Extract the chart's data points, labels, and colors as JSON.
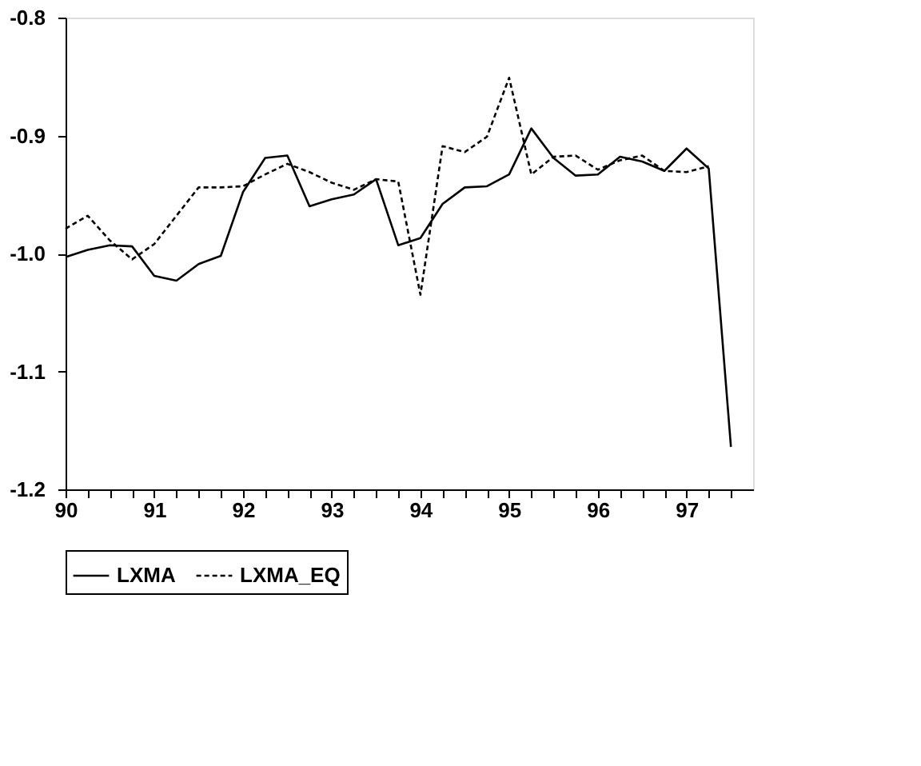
{
  "chart_data": {
    "type": "line",
    "x": [
      90,
      90.25,
      90.5,
      90.75,
      91,
      91.25,
      91.5,
      91.75,
      92,
      92.25,
      92.5,
      92.75,
      93,
      93.25,
      93.5,
      93.75,
      94,
      94.25,
      94.5,
      94.75,
      95,
      95.25,
      95.5,
      95.75,
      96,
      96.25,
      96.5,
      96.75,
      97,
      97.25,
      97.5
    ],
    "series": [
      {
        "name": "LXMA",
        "color": "#000000",
        "line_style": "solid",
        "values": [
          -1.003,
          -0.997,
          -0.993,
          -0.994,
          -1.019,
          -1.023,
          -1.009,
          -1.002,
          -0.948,
          -0.919,
          -0.917,
          -0.96,
          -0.954,
          -0.95,
          -0.937,
          -0.993,
          -0.987,
          -0.958,
          -0.944,
          -0.943,
          -0.933,
          -0.894,
          -0.919,
          -0.934,
          -0.933,
          -0.918,
          -0.922,
          -0.93,
          -0.911,
          -0.928,
          -1.164
        ]
      },
      {
        "name": "LXMA_EQ",
        "color": "#000000",
        "line_style": "dashed",
        "values": [
          -0.979,
          -0.968,
          -0.989,
          -1.005,
          -0.992,
          -0.968,
          -0.944,
          -0.944,
          -0.943,
          -0.933,
          -0.924,
          -0.931,
          -0.94,
          -0.946,
          -0.937,
          -0.939,
          -1.035,
          -0.909,
          -0.914,
          -0.901,
          -0.851,
          -0.933,
          -0.918,
          -0.917,
          -0.929,
          -0.921,
          -0.917,
          -0.93,
          -0.931,
          -0.926,
          null
        ]
      }
    ],
    "xlim": [
      90,
      97.75
    ],
    "xticks": [
      90,
      {
        "value": 90.25,
        "label": null
      },
      {
        "value": 90.5,
        "label": null
      },
      {
        "value": 90.75,
        "label": null
      },
      91,
      {
        "value": 91.25,
        "label": null
      },
      {
        "value": 91.5,
        "label": null
      },
      {
        "value": 91.75,
        "label": null
      },
      92,
      {
        "value": 92.25,
        "label": null
      },
      {
        "value": 92.5,
        "label": null
      },
      {
        "value": 92.75,
        "label": null
      },
      93,
      {
        "value": 93.25,
        "label": null
      },
      {
        "value": 93.5,
        "label": null
      },
      {
        "value": 93.75,
        "label": null
      },
      94,
      {
        "value": 94.25,
        "label": null
      },
      {
        "value": 94.5,
        "label": null
      },
      {
        "value": 94.75,
        "label": null
      },
      95,
      {
        "value": 95.25,
        "label": null
      },
      {
        "value": 95.5,
        "label": null
      },
      {
        "value": 95.75,
        "label": null
      },
      96,
      {
        "value": 96.25,
        "label": null
      },
      {
        "value": 96.5,
        "label": null
      },
      {
        "value": 96.75,
        "label": null
      },
      97,
      {
        "value": 97.25,
        "label": null
      },
      {
        "value": 97.5,
        "label": null
      }
    ],
    "ylim": [
      -1.2,
      -0.8
    ],
    "yticks": [
      {
        "value": -1.2,
        "label": "-1.2"
      },
      {
        "value": -1.1,
        "label": "-1.1"
      },
      {
        "value": -1.0,
        "label": "-1.0"
      },
      {
        "value": -0.9,
        "label": "-0.9"
      },
      {
        "value": -0.8,
        "label": "-0.8"
      }
    ],
    "grid": false,
    "legend": "bottom"
  }
}
